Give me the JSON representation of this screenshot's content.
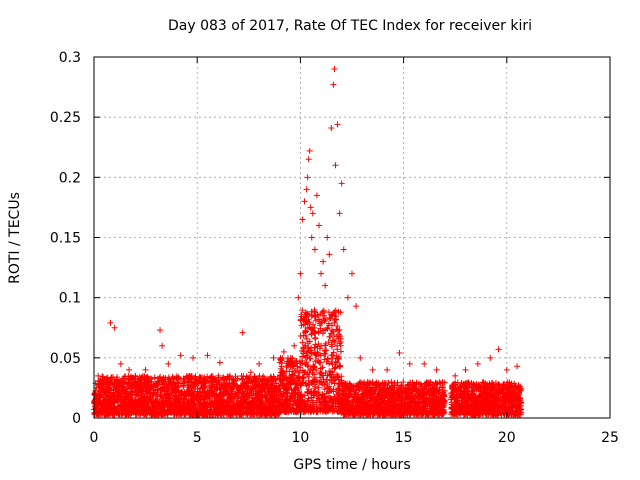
{
  "chart_data": {
    "type": "scatter",
    "title": "Day 083 of 2017, Rate Of TEC Index for receiver kiri",
    "xlabel": "GPS time / hours",
    "ylabel": "ROTI / TECUs",
    "xlim": [
      0,
      25
    ],
    "ylim": [
      0,
      0.3
    ],
    "x_ticks": [
      0,
      5,
      10,
      15,
      20,
      25
    ],
    "x_tick_labels": [
      "0",
      "5",
      "10",
      "15",
      "20",
      "25"
    ],
    "y_ticks": [
      0,
      0.05,
      0.1,
      0.15,
      0.2,
      0.25,
      0.3
    ],
    "y_tick_labels": [
      "0",
      "0.05",
      "0.1",
      "0.15",
      "0.2",
      "0.25",
      "0.3"
    ],
    "grid": true,
    "marker": "+",
    "color": "#ff0000",
    "data_gaps_hours": [
      [
        17.0,
        17.3
      ]
    ],
    "series": [
      {
        "name": "ROTI",
        "points": [
          [
            0.2,
            0.035
          ],
          [
            0.5,
            0.03
          ],
          [
            0.8,
            0.079
          ],
          [
            1.0,
            0.075
          ],
          [
            1.3,
            0.045
          ],
          [
            1.7,
            0.04
          ],
          [
            2.0,
            0.035
          ],
          [
            2.5,
            0.04
          ],
          [
            3.2,
            0.073
          ],
          [
            3.3,
            0.06
          ],
          [
            3.6,
            0.045
          ],
          [
            4.2,
            0.052
          ],
          [
            4.8,
            0.05
          ],
          [
            5.5,
            0.052
          ],
          [
            6.1,
            0.046
          ],
          [
            7.2,
            0.071
          ],
          [
            7.6,
            0.038
          ],
          [
            8.0,
            0.045
          ],
          [
            8.7,
            0.05
          ],
          [
            9.2,
            0.055
          ],
          [
            9.7,
            0.06
          ],
          [
            9.9,
            0.1
          ],
          [
            10.0,
            0.12
          ],
          [
            10.1,
            0.165
          ],
          [
            10.2,
            0.18
          ],
          [
            10.3,
            0.19
          ],
          [
            10.35,
            0.2
          ],
          [
            10.4,
            0.215
          ],
          [
            10.45,
            0.222
          ],
          [
            10.5,
            0.175
          ],
          [
            10.55,
            0.15
          ],
          [
            10.6,
            0.17
          ],
          [
            10.7,
            0.14
          ],
          [
            10.8,
            0.185
          ],
          [
            10.9,
            0.16
          ],
          [
            11.0,
            0.12
          ],
          [
            11.1,
            0.13
          ],
          [
            11.2,
            0.11
          ],
          [
            11.3,
            0.15
          ],
          [
            11.4,
            0.136
          ],
          [
            11.5,
            0.241
          ],
          [
            11.6,
            0.277
          ],
          [
            11.65,
            0.29
          ],
          [
            11.7,
            0.21
          ],
          [
            11.8,
            0.244
          ],
          [
            11.9,
            0.17
          ],
          [
            12.0,
            0.195
          ],
          [
            12.1,
            0.14
          ],
          [
            12.3,
            0.1
          ],
          [
            12.5,
            0.12
          ],
          [
            12.7,
            0.093
          ],
          [
            12.9,
            0.05
          ],
          [
            13.5,
            0.04
          ],
          [
            14.2,
            0.04
          ],
          [
            14.8,
            0.054
          ],
          [
            15.3,
            0.045
          ],
          [
            16.0,
            0.045
          ],
          [
            16.6,
            0.04
          ],
          [
            17.5,
            0.035
          ],
          [
            18.0,
            0.04
          ],
          [
            18.6,
            0.045
          ],
          [
            19.2,
            0.05
          ],
          [
            19.6,
            0.057
          ],
          [
            20.0,
            0.04
          ],
          [
            20.5,
            0.043
          ]
        ]
      }
    ],
    "dense_band": {
      "description": "dense cloud of ROTI samples near baseline",
      "segments": [
        {
          "x_range": [
            0,
            9.0
          ],
          "y_range": [
            0.003,
            0.035
          ]
        },
        {
          "x_range": [
            9.0,
            10.0
          ],
          "y_range": [
            0.005,
            0.05
          ]
        },
        {
          "x_range": [
            10.0,
            12.0
          ],
          "y_range": [
            0.005,
            0.09
          ]
        },
        {
          "x_range": [
            12.0,
            17.0
          ],
          "y_range": [
            0.003,
            0.03
          ]
        },
        {
          "x_range": [
            17.3,
            20.7
          ],
          "y_range": [
            0.003,
            0.03
          ]
        }
      ]
    }
  }
}
